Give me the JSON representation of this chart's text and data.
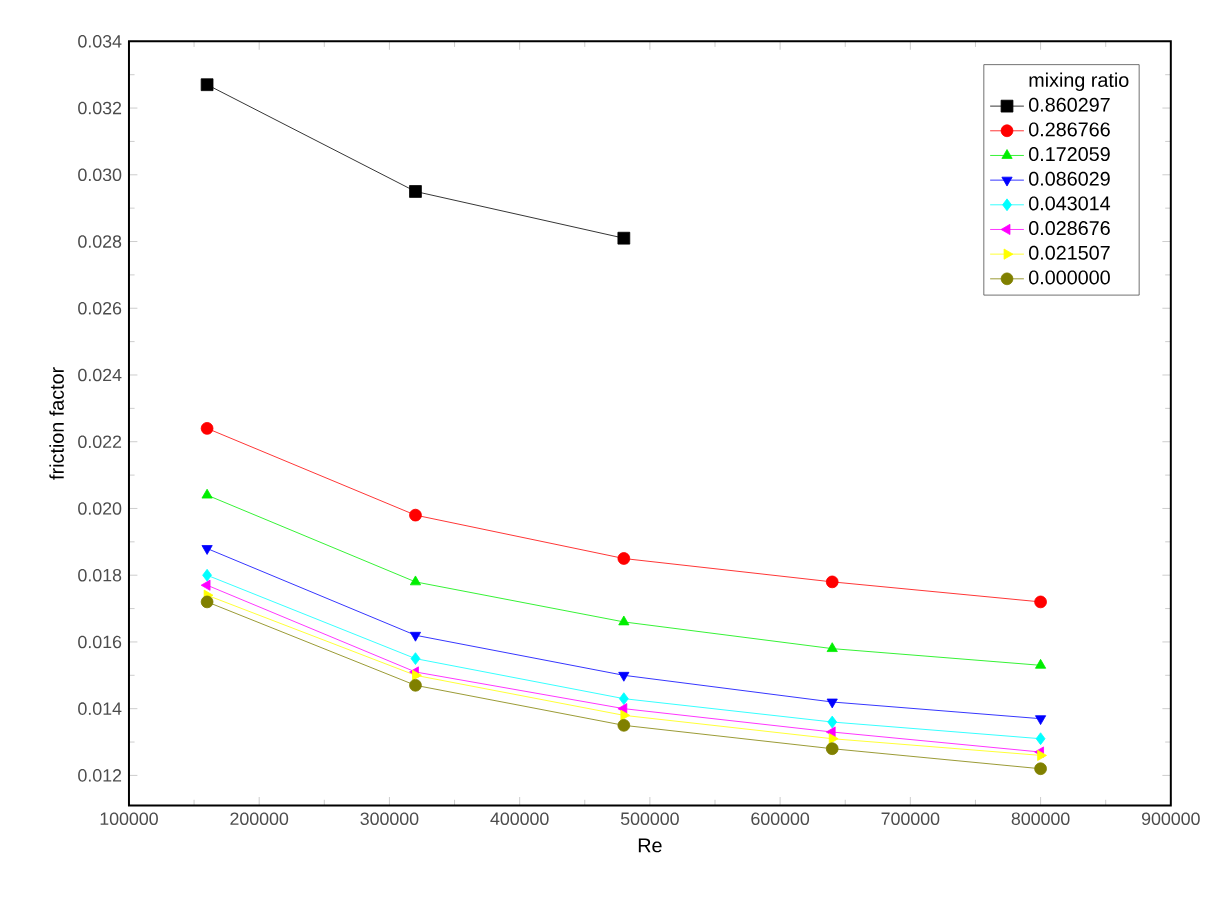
{
  "chart_data": {
    "type": "line",
    "xlabel": "Re",
    "ylabel": "friction factor",
    "legend_title": "mixing ratio",
    "x": [
      160000,
      320000,
      480000,
      640000,
      800000
    ],
    "series": [
      {
        "name": "0.860297",
        "color": "#000000",
        "marker": "square",
        "values": [
          0.0327,
          0.0295,
          0.0281,
          null,
          null
        ]
      },
      {
        "name": "0.286766",
        "color": "#ff0000",
        "marker": "circle",
        "values": [
          0.0224,
          0.0198,
          0.0185,
          0.0178,
          0.0172
        ]
      },
      {
        "name": "0.172059",
        "color": "#00ee00",
        "marker": "triangle",
        "values": [
          0.0204,
          0.0178,
          0.0166,
          0.0158,
          0.0153
        ]
      },
      {
        "name": "0.086029",
        "color": "#0000ff",
        "marker": "triangle-down",
        "values": [
          0.0188,
          0.0162,
          0.015,
          0.0142,
          0.0137
        ]
      },
      {
        "name": "0.043014",
        "color": "#00ffff",
        "marker": "diamond",
        "values": [
          0.018,
          0.0155,
          0.0143,
          0.0136,
          0.0131
        ]
      },
      {
        "name": "0.028676",
        "color": "#ff00ff",
        "marker": "triangle-left",
        "values": [
          0.0177,
          0.0151,
          0.014,
          0.0133,
          0.0127
        ]
      },
      {
        "name": "0.021507",
        "color": "#ffff00",
        "marker": "triangle-right",
        "values": [
          0.0174,
          0.015,
          0.0138,
          0.0131,
          0.0126
        ]
      },
      {
        "name": "0.000000",
        "color": "#808000",
        "marker": "circle",
        "values": [
          0.0172,
          0.0147,
          0.0135,
          0.0128,
          0.0122
        ]
      }
    ],
    "xlim": [
      100000,
      900000
    ],
    "xticks": [
      100000,
      200000,
      300000,
      400000,
      500000,
      600000,
      700000,
      800000,
      900000
    ],
    "ylim": [
      0.0111,
      0.034
    ],
    "yticks": [
      0.012,
      0.014,
      0.016,
      0.018,
      {
        "value": 0.02,
        "label": "0.020"
      },
      0.022,
      0.024,
      0.026,
      0.028,
      {
        "value": 0.03,
        "label": "0.030"
      },
      0.032,
      0.034
    ],
    "legend": "top right",
    "grid": false,
    "line_style": "solid"
  }
}
